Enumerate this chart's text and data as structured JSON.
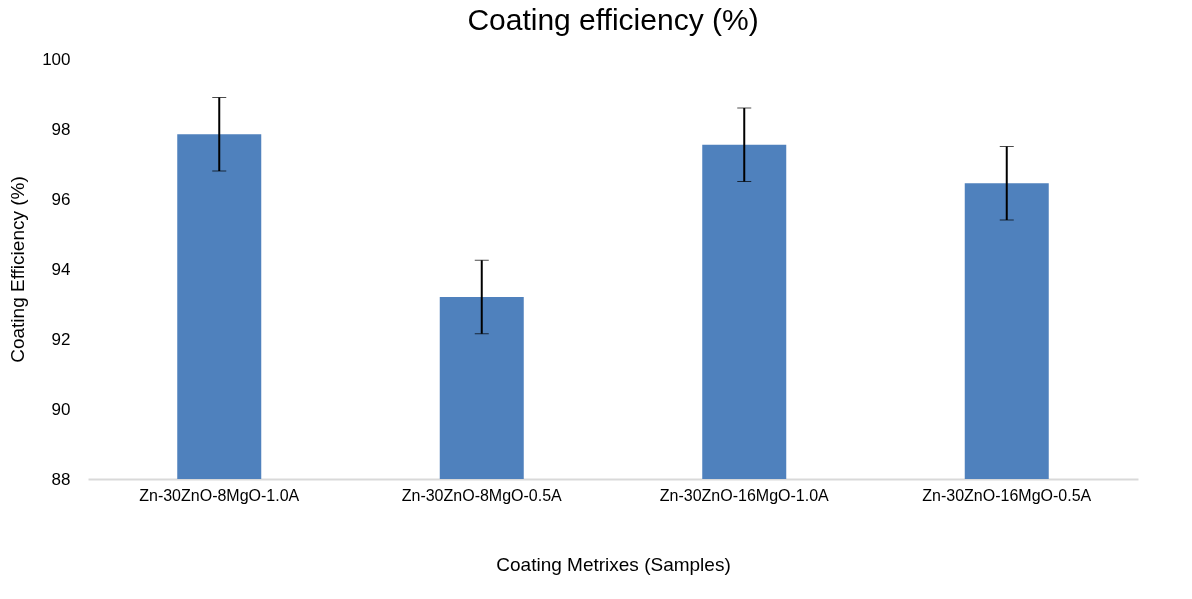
{
  "chart_data": {
    "type": "bar",
    "title": "Coating efficiency (%)",
    "xlabel": "Coating Metrixes (Samples)",
    "ylabel": "Coating Efficiency (%)",
    "categories": [
      "Zn-30ZnO-8MgO-1.0A",
      "Zn-30ZnO-8MgO-0.5A",
      "Zn-30ZnO-16MgO-1.0A",
      "Zn-30ZnO-16MgO-0.5A"
    ],
    "values": [
      97.85,
      93.2,
      97.55,
      96.45
    ],
    "errors": [
      1.05,
      1.05,
      1.05,
      1.05
    ],
    "color": "#4f81bd",
    "ylim": [
      88,
      100
    ],
    "yticks": [
      88,
      90,
      92,
      94,
      96,
      98,
      100
    ],
    "grid": false
  }
}
